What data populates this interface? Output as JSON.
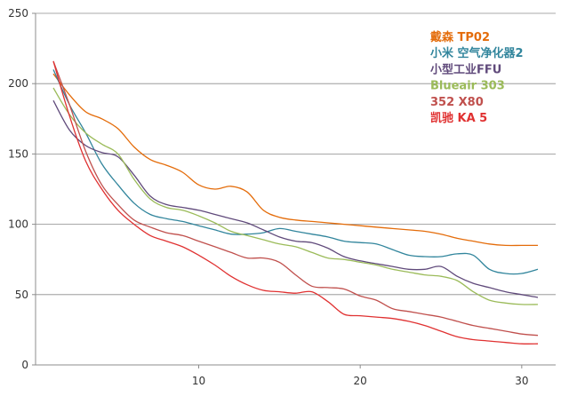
{
  "chart_data": {
    "type": "line",
    "title": "",
    "xlabel": "",
    "ylabel": "",
    "xlim": [
      0,
      32
    ],
    "ylim": [
      0,
      250
    ],
    "x_ticks": [
      "10",
      "20",
      "30"
    ],
    "y_ticks": [
      "0",
      "50",
      "100",
      "150",
      "200",
      "250"
    ],
    "grid": "horizontal",
    "legend_position": "top-right",
    "x": [
      1,
      2,
      3,
      4,
      5,
      6,
      7,
      8,
      9,
      10,
      11,
      12,
      13,
      14,
      15,
      16,
      17,
      18,
      19,
      20,
      21,
      22,
      23,
      24,
      25,
      26,
      27,
      28,
      29,
      30,
      31
    ],
    "series": [
      {
        "name": "戴森 TP02",
        "color": "#E46C0A",
        "values": [
          207,
          192,
          180,
          175,
          168,
          155,
          146,
          142,
          137,
          128,
          125,
          127,
          123,
          110,
          105,
          103,
          102,
          101,
          100,
          99,
          98,
          97,
          96,
          95,
          93,
          90,
          88,
          86,
          85,
          85,
          85
        ]
      },
      {
        "name": "小米 空气净化器2",
        "color": "#31859C",
        "values": [
          210,
          185,
          165,
          143,
          128,
          115,
          107,
          104,
          102,
          99,
          96,
          93,
          93,
          94,
          97,
          95,
          93,
          91,
          88,
          87,
          86,
          82,
          78,
          77,
          77,
          79,
          78,
          68,
          65,
          65,
          68
        ]
      },
      {
        "name": "小型工业FFU",
        "color": "#604A7B",
        "values": [
          188,
          167,
          156,
          151,
          148,
          135,
          120,
          114,
          112,
          110,
          107,
          104,
          101,
          96,
          91,
          88,
          87,
          83,
          77,
          74,
          72,
          70,
          68,
          68,
          70,
          63,
          58,
          55,
          52,
          50,
          48
        ]
      },
      {
        "name": "Blueair 303",
        "color": "#9BBB59",
        "values": [
          197,
          178,
          165,
          157,
          150,
          132,
          118,
          112,
          110,
          106,
          101,
          95,
          92,
          89,
          86,
          84,
          80,
          76,
          75,
          73,
          71,
          68,
          66,
          64,
          63,
          60,
          52,
          46,
          44,
          43,
          43
        ]
      },
      {
        "name": "352 X80",
        "color": "#C0504D",
        "values": [
          216,
          185,
          152,
          128,
          114,
          103,
          98,
          94,
          92,
          88,
          84,
          80,
          76,
          76,
          73,
          64,
          56,
          55,
          54,
          49,
          46,
          40,
          38,
          36,
          34,
          31,
          28,
          26,
          24,
          22,
          21
        ]
      },
      {
        "name": "凯驰 KA 5",
        "color": "#E03131",
        "values": [
          216,
          177,
          145,
          125,
          110,
          100,
          92,
          88,
          84,
          78,
          71,
          63,
          57,
          53,
          52,
          51,
          52,
          45,
          36,
          35,
          34,
          33,
          31,
          28,
          24,
          20,
          18,
          17,
          16,
          15,
          15
        ]
      }
    ]
  }
}
